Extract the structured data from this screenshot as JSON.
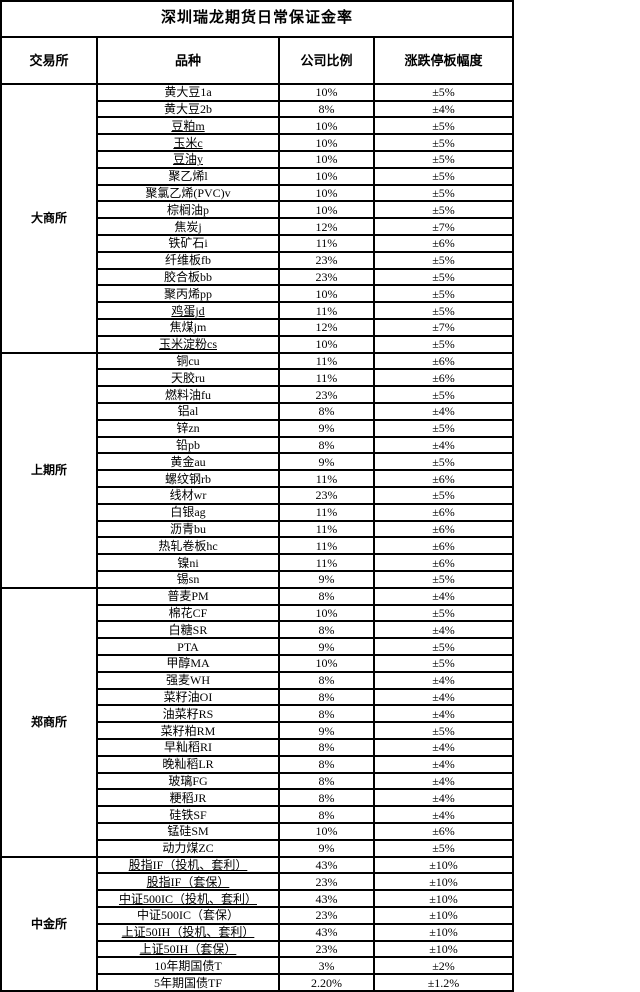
{
  "title": "深圳瑞龙期货日常保证金率",
  "columns": [
    "交易所",
    "品种",
    "公司比例",
    "涨跌停板幅度"
  ],
  "colors": {
    "border": "#000000",
    "text": "#000000",
    "background": "#ffffff"
  },
  "sections": [
    {
      "exchange": "大商所",
      "rows": [
        {
          "variety": "黄大豆1a",
          "ratio": "10%",
          "limit": "±5%",
          "underline": false
        },
        {
          "variety": "黄大豆2b",
          "ratio": "8%",
          "limit": "±4%",
          "underline": false
        },
        {
          "variety": "豆粕m",
          "ratio": "10%",
          "limit": "±5%",
          "underline": true
        },
        {
          "variety": "玉米c",
          "ratio": "10%",
          "limit": "±5%",
          "underline": true
        },
        {
          "variety": "豆油y",
          "ratio": "10%",
          "limit": "±5%",
          "underline": true
        },
        {
          "variety": "聚乙烯l",
          "ratio": "10%",
          "limit": "±5%",
          "underline": false
        },
        {
          "variety": "聚氯乙烯(PVC)v",
          "ratio": "10%",
          "limit": "±5%",
          "underline": false
        },
        {
          "variety": "棕榈油p",
          "ratio": "10%",
          "limit": "±5%",
          "underline": false
        },
        {
          "variety": "焦炭j",
          "ratio": "12%",
          "limit": "±7%",
          "underline": false
        },
        {
          "variety": "铁矿石i",
          "ratio": "11%",
          "limit": "±6%",
          "underline": false
        },
        {
          "variety": "纤维板fb",
          "ratio": "23%",
          "limit": "±5%",
          "underline": false
        },
        {
          "variety": "胶合板bb",
          "ratio": "23%",
          "limit": "±5%",
          "underline": false
        },
        {
          "variety": "聚丙烯pp",
          "ratio": "10%",
          "limit": "±5%",
          "underline": false
        },
        {
          "variety": "鸡蛋jd",
          "ratio": "11%",
          "limit": "±5%",
          "underline": true
        },
        {
          "variety": "焦煤jm",
          "ratio": "12%",
          "limit": "±7%",
          "underline": false
        },
        {
          "variety": "玉米淀粉cs",
          "ratio": "10%",
          "limit": "±5%",
          "underline": true
        }
      ]
    },
    {
      "exchange": "上期所",
      "rows": [
        {
          "variety": "铜cu",
          "ratio": "11%",
          "limit": "±6%",
          "underline": false
        },
        {
          "variety": "天胶ru",
          "ratio": "11%",
          "limit": "±6%",
          "underline": false
        },
        {
          "variety": "燃料油fu",
          "ratio": "23%",
          "limit": "±5%",
          "underline": false
        },
        {
          "variety": "铝al",
          "ratio": "8%",
          "limit": "±4%",
          "underline": false
        },
        {
          "variety": "锌zn",
          "ratio": "9%",
          "limit": "±5%",
          "underline": false
        },
        {
          "variety": "铅pb",
          "ratio": "8%",
          "limit": "±4%",
          "underline": false
        },
        {
          "variety": "黄金au",
          "ratio": "9%",
          "limit": "±5%",
          "underline": false
        },
        {
          "variety": "螺纹钢rb",
          "ratio": "11%",
          "limit": "±6%",
          "underline": false
        },
        {
          "variety": "线材wr",
          "ratio": "23%",
          "limit": "±5%",
          "underline": false
        },
        {
          "variety": "白银ag",
          "ratio": "11%",
          "limit": "±6%",
          "underline": false
        },
        {
          "variety": "沥青bu",
          "ratio": "11%",
          "limit": "±6%",
          "underline": false
        },
        {
          "variety": "热轧卷板hc",
          "ratio": "11%",
          "limit": "±6%",
          "underline": false
        },
        {
          "variety": "镍ni",
          "ratio": "11%",
          "limit": "±6%",
          "underline": false
        },
        {
          "variety": "锡sn",
          "ratio": "9%",
          "limit": "±5%",
          "underline": false
        }
      ]
    },
    {
      "exchange": "郑商所",
      "rows": [
        {
          "variety": "普麦PM",
          "ratio": "8%",
          "limit": "±4%",
          "underline": false
        },
        {
          "variety": "棉花CF",
          "ratio": "10%",
          "limit": "±5%",
          "underline": false
        },
        {
          "variety": "白糖SR",
          "ratio": "8%",
          "limit": "±4%",
          "underline": false
        },
        {
          "variety": "PTA",
          "ratio": "9%",
          "limit": "±5%",
          "underline": false
        },
        {
          "variety": "甲醇MA",
          "ratio": "10%",
          "limit": "±5%",
          "underline": false
        },
        {
          "variety": "强麦WH",
          "ratio": "8%",
          "limit": "±4%",
          "underline": false
        },
        {
          "variety": "菜籽油OI",
          "ratio": "8%",
          "limit": "±4%",
          "underline": false
        },
        {
          "variety": "油菜籽RS",
          "ratio": "8%",
          "limit": "±4%",
          "underline": false
        },
        {
          "variety": "菜籽粕RM",
          "ratio": "9%",
          "limit": "±5%",
          "underline": false
        },
        {
          "variety": "早籼稻RI",
          "ratio": "8%",
          "limit": "±4%",
          "underline": false
        },
        {
          "variety": "晚籼稻LR",
          "ratio": "8%",
          "limit": "±4%",
          "underline": false
        },
        {
          "variety": "玻璃FG",
          "ratio": "8%",
          "limit": "±4%",
          "underline": false
        },
        {
          "variety": "粳稻JR",
          "ratio": "8%",
          "limit": "±4%",
          "underline": false
        },
        {
          "variety": "硅铁SF",
          "ratio": "8%",
          "limit": "±4%",
          "underline": false
        },
        {
          "variety": "锰硅SM",
          "ratio": "10%",
          "limit": "±6%",
          "underline": false
        },
        {
          "variety": "动力煤ZC",
          "ratio": "9%",
          "limit": "±5%",
          "underline": false
        }
      ]
    },
    {
      "exchange": "中金所",
      "rows": [
        {
          "variety": "股指IF（投机、套利）",
          "ratio": "43%",
          "limit": "±10%",
          "underline": true
        },
        {
          "variety": "股指IF（套保）",
          "ratio": "23%",
          "limit": "±10%",
          "underline": true
        },
        {
          "variety": "中证500IC（投机、套利）",
          "ratio": "43%",
          "limit": "±10%",
          "underline": true
        },
        {
          "variety": "中证500IC（套保）",
          "ratio": "23%",
          "limit": "±10%",
          "underline": false
        },
        {
          "variety": "上证50IH（投机、套利）",
          "ratio": "43%",
          "limit": "±10%",
          "underline": true
        },
        {
          "variety": "上证50IH（套保）",
          "ratio": "23%",
          "limit": "±10%",
          "underline": true
        },
        {
          "variety": "10年期国债T",
          "ratio": "3%",
          "limit": "±2%",
          "underline": false
        },
        {
          "variety": "5年期国债TF",
          "ratio": "2.20%",
          "limit": "±1.2%",
          "underline": false
        }
      ]
    }
  ]
}
